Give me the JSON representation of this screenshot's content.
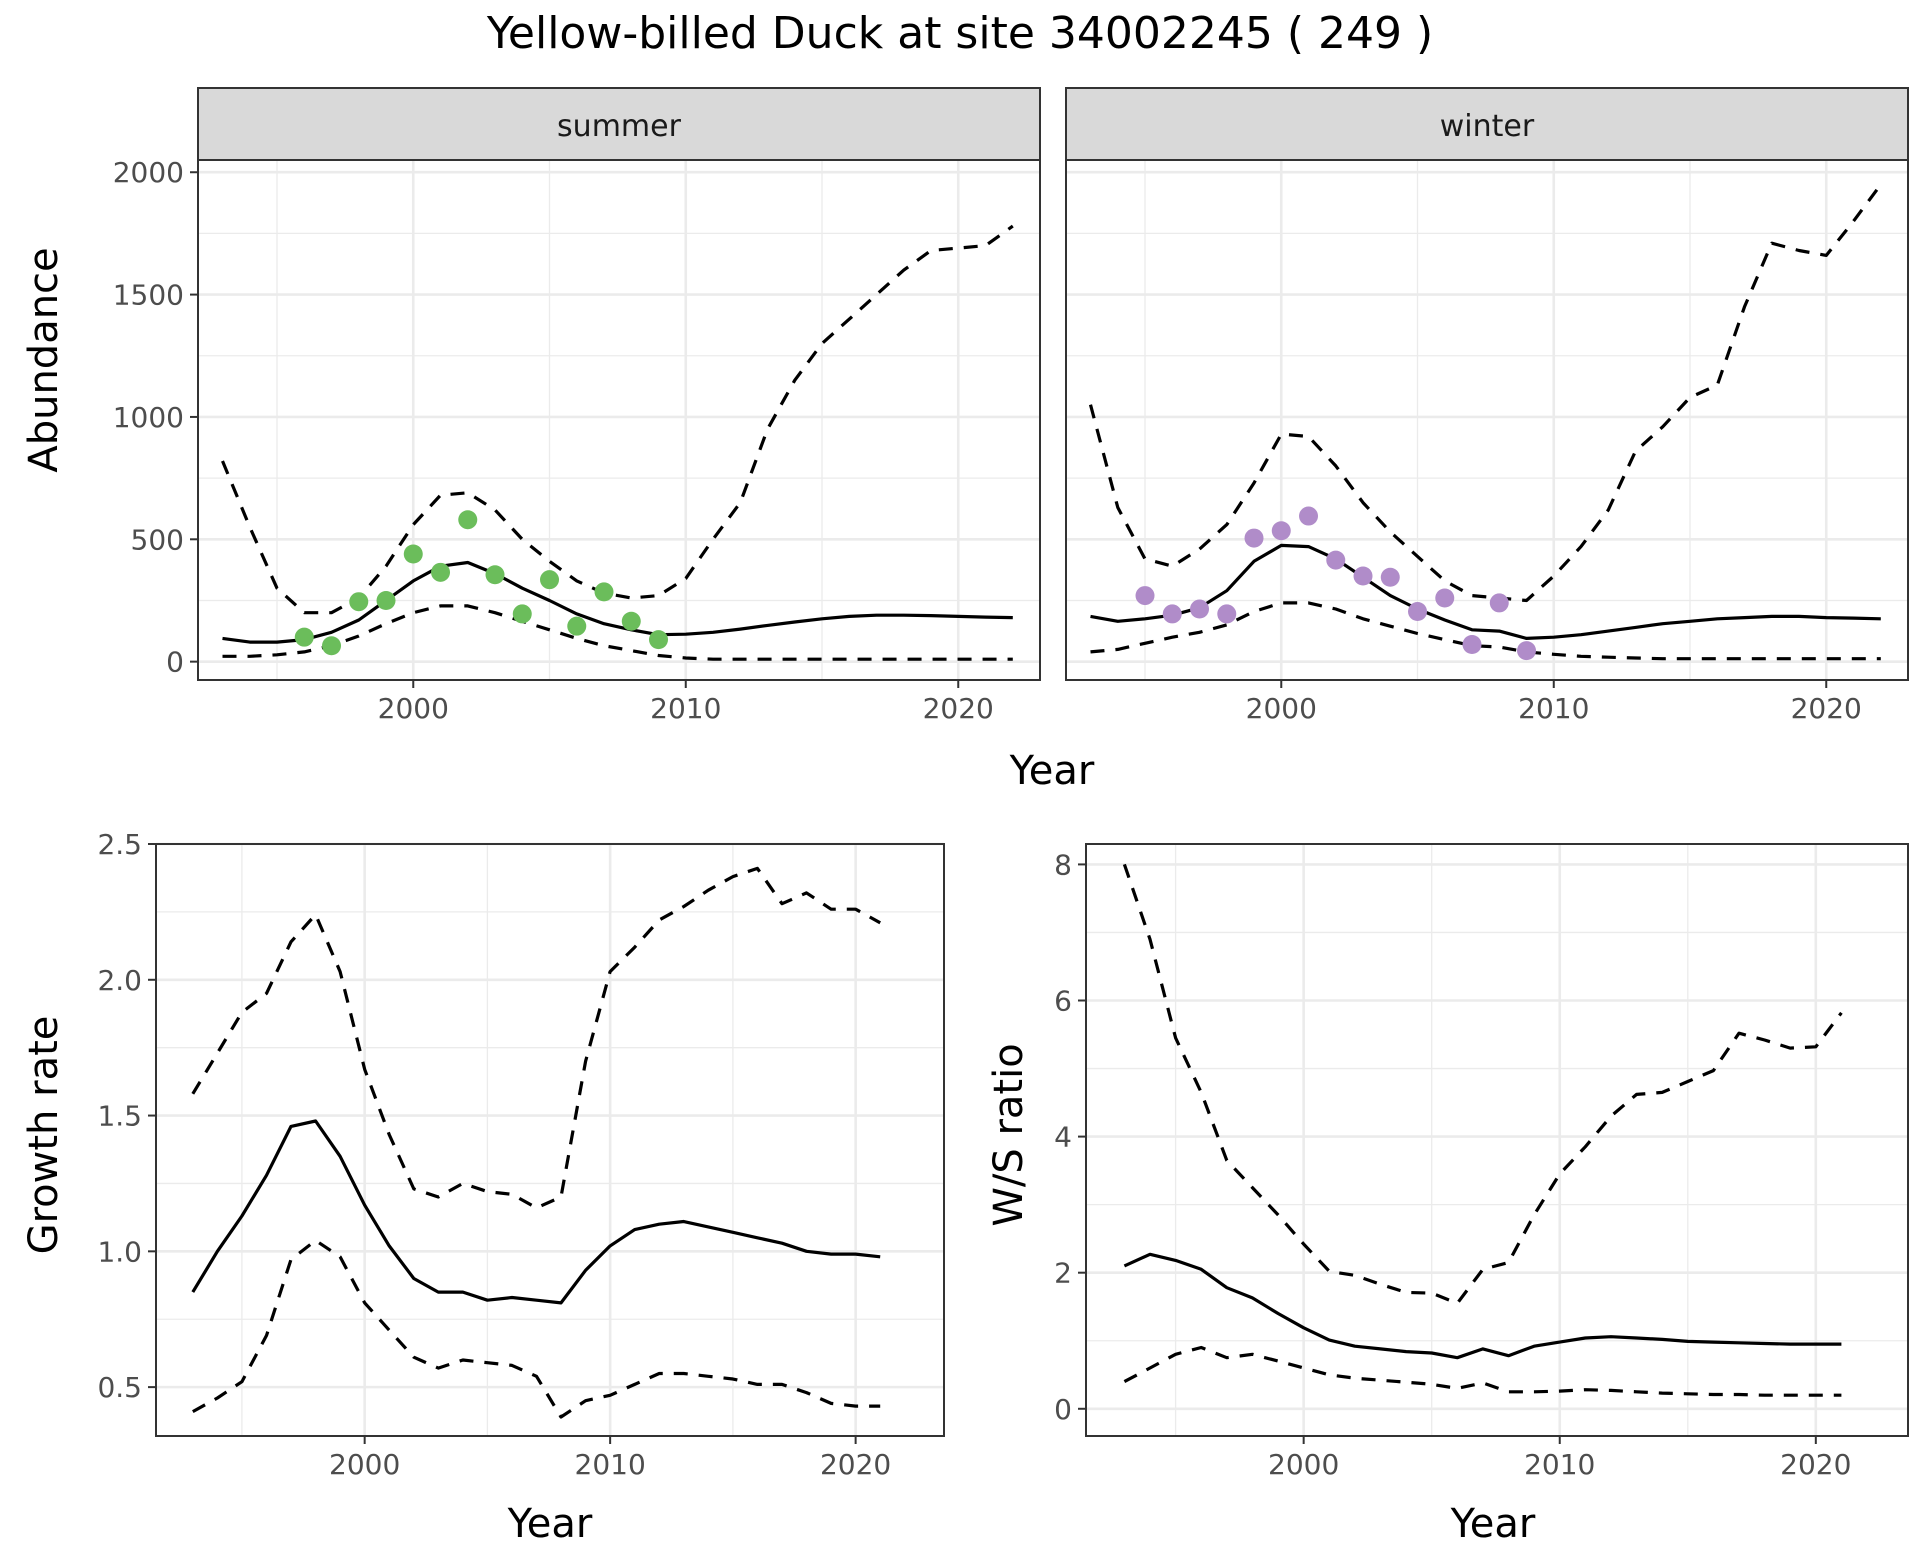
{
  "title": "Yellow-billed Duck at site 34002245 ( 249 )",
  "colors": {
    "summer_points": "#6bbd5b",
    "winter_points": "#b08cc9",
    "lines": "#000000"
  },
  "chart_data": [
    {
      "type": "line",
      "panel": "summer",
      "xlabel": "Year",
      "ylabel": "Abundance",
      "xlim": [
        1992.1,
        2023.0
      ],
      "ylim": [
        -75,
        2050
      ],
      "x_ticks": [
        2000,
        2010,
        2020
      ],
      "y_ticks": [
        0,
        500,
        1000,
        1500,
        2000
      ],
      "grid": true,
      "x": [
        1993,
        1994,
        1995,
        1996,
        1997,
        1998,
        1999,
        2000,
        2001,
        2002,
        2003,
        2004,
        2005,
        2006,
        2007,
        2008,
        2009,
        2010,
        2011,
        2012,
        2013,
        2014,
        2015,
        2016,
        2017,
        2018,
        2019,
        2020,
        2021,
        2022
      ],
      "series": [
        {
          "role": "mean",
          "style": "solid",
          "values": [
            95,
            80,
            80,
            90,
            120,
            170,
            250,
            330,
            390,
            405,
            360,
            300,
            250,
            195,
            155,
            130,
            110,
            112,
            120,
            133,
            148,
            162,
            175,
            185,
            190,
            190,
            188,
            185,
            182,
            180
          ]
        },
        {
          "role": "upper",
          "style": "dashed",
          "values": [
            820,
            550,
            300,
            200,
            200,
            260,
            390,
            560,
            680,
            690,
            620,
            500,
            410,
            330,
            280,
            260,
            270,
            340,
            500,
            650,
            950,
            1150,
            1300,
            1400,
            1500,
            1600,
            1680,
            1690,
            1700,
            1780
          ]
        },
        {
          "role": "lower",
          "style": "dashed",
          "values": [
            22,
            22,
            28,
            40,
            65,
            105,
            155,
            200,
            228,
            228,
            200,
            165,
            130,
            95,
            65,
            45,
            25,
            15,
            10,
            10,
            10,
            10,
            10,
            10,
            10,
            10,
            10,
            10,
            10,
            10
          ]
        }
      ],
      "points": {
        "color": "#6bbd5b",
        "x": [
          1996,
          1997,
          1998,
          1999,
          2000,
          2001,
          2002,
          2003,
          2004,
          2005,
          2006,
          2007,
          2008,
          2009
        ],
        "y": [
          100,
          65,
          245,
          250,
          440,
          365,
          580,
          355,
          195,
          335,
          145,
          285,
          165,
          90
        ]
      }
    },
    {
      "type": "line",
      "panel": "winter",
      "xlabel": "Year",
      "ylabel": "Abundance",
      "xlim": [
        1992.1,
        2023.0
      ],
      "ylim": [
        -75,
        2050
      ],
      "x_ticks": [
        2000,
        2010,
        2020
      ],
      "y_ticks": [
        0,
        500,
        1000,
        1500,
        2000
      ],
      "grid": true,
      "x": [
        1993,
        1994,
        1995,
        1996,
        1997,
        1998,
        1999,
        2000,
        2001,
        2002,
        2003,
        2004,
        2005,
        2006,
        2007,
        2008,
        2009,
        2010,
        2011,
        2012,
        2013,
        2014,
        2015,
        2016,
        2017,
        2018,
        2019,
        2020,
        2021,
        2022
      ],
      "series": [
        {
          "role": "mean",
          "style": "solid",
          "values": [
            185,
            165,
            175,
            190,
            220,
            290,
            410,
            475,
            470,
            420,
            345,
            270,
            215,
            170,
            130,
            125,
            95,
            100,
            110,
            125,
            140,
            155,
            165,
            175,
            180,
            185,
            185,
            180,
            178,
            175
          ]
        },
        {
          "role": "upper",
          "style": "dashed",
          "values": [
            1050,
            630,
            420,
            390,
            460,
            560,
            730,
            930,
            920,
            800,
            650,
            530,
            430,
            330,
            270,
            260,
            250,
            350,
            470,
            620,
            860,
            960,
            1080,
            1130,
            1450,
            1710,
            1680,
            1660,
            1800,
            1950
          ]
        },
        {
          "role": "lower",
          "style": "dashed",
          "values": [
            40,
            50,
            75,
            100,
            120,
            150,
            205,
            240,
            240,
            215,
            175,
            145,
            115,
            90,
            65,
            60,
            40,
            30,
            22,
            18,
            15,
            12,
            12,
            12,
            12,
            12,
            12,
            12,
            12,
            12
          ]
        }
      ],
      "points": {
        "color": "#b08cc9",
        "x": [
          1995,
          1996,
          1997,
          1998,
          1999,
          2000,
          2001,
          2002,
          2003,
          2004,
          2005,
          2006,
          2007,
          2008,
          2009
        ],
        "y": [
          270,
          195,
          215,
          195,
          505,
          535,
          595,
          415,
          350,
          345,
          205,
          260,
          70,
          240,
          45
        ]
      }
    },
    {
      "type": "line",
      "panel": "growth",
      "xlabel": "Year",
      "ylabel": "Growth rate",
      "xlim": [
        1991.5,
        2023.6
      ],
      "ylim": [
        0.32,
        2.5
      ],
      "x_ticks": [
        2000,
        2010,
        2020
      ],
      "y_ticks": [
        0.5,
        1.0,
        1.5,
        2.0,
        2.5
      ],
      "y_tick_labels": [
        "0.5",
        "1.0",
        "1.5",
        "2.0",
        "2.5"
      ],
      "grid": true,
      "x": [
        1993,
        1994,
        1995,
        1996,
        1997,
        1998,
        1999,
        2000,
        2001,
        2002,
        2003,
        2004,
        2005,
        2006,
        2007,
        2008,
        2009,
        2010,
        2011,
        2012,
        2013,
        2014,
        2015,
        2016,
        2017,
        2018,
        2019,
        2020,
        2021
      ],
      "series": [
        {
          "role": "mean",
          "style": "solid",
          "values": [
            0.85,
            1.0,
            1.13,
            1.28,
            1.46,
            1.48,
            1.35,
            1.17,
            1.02,
            0.9,
            0.85,
            0.85,
            0.82,
            0.83,
            0.82,
            0.81,
            0.93,
            1.02,
            1.08,
            1.1,
            1.11,
            1.09,
            1.07,
            1.05,
            1.03,
            1.0,
            0.99,
            0.99,
            0.98
          ]
        },
        {
          "role": "upper",
          "style": "dashed",
          "values": [
            1.58,
            1.73,
            1.88,
            1.95,
            2.14,
            2.24,
            2.03,
            1.67,
            1.43,
            1.23,
            1.2,
            1.25,
            1.22,
            1.21,
            1.16,
            1.2,
            1.7,
            2.03,
            2.12,
            2.22,
            2.27,
            2.33,
            2.38,
            2.41,
            2.28,
            2.32,
            2.26,
            2.26,
            2.21
          ]
        },
        {
          "role": "lower",
          "style": "dashed",
          "values": [
            0.41,
            0.46,
            0.52,
            0.69,
            0.97,
            1.04,
            0.98,
            0.81,
            0.71,
            0.61,
            0.57,
            0.6,
            0.59,
            0.58,
            0.54,
            0.39,
            0.45,
            0.47,
            0.51,
            0.55,
            0.55,
            0.54,
            0.53,
            0.51,
            0.51,
            0.48,
            0.44,
            0.43,
            0.43
          ]
        }
      ]
    },
    {
      "type": "line",
      "panel": "ratio",
      "xlabel": "Year",
      "ylabel": "W/S ratio",
      "xlim": [
        1991.5,
        2023.6
      ],
      "ylim": [
        -0.4,
        8.3
      ],
      "x_ticks": [
        2000,
        2010,
        2020
      ],
      "y_ticks": [
        0,
        2,
        4,
        6,
        8
      ],
      "grid": true,
      "x": [
        1993,
        1994,
        1995,
        1996,
        1997,
        1998,
        1999,
        2000,
        2001,
        2002,
        2003,
        2004,
        2005,
        2006,
        2007,
        2008,
        2009,
        2010,
        2011,
        2012,
        2013,
        2014,
        2015,
        2016,
        2017,
        2018,
        2019,
        2020,
        2021
      ],
      "series": [
        {
          "role": "mean",
          "style": "solid",
          "values": [
            2.1,
            2.27,
            2.18,
            2.05,
            1.78,
            1.63,
            1.4,
            1.19,
            1.01,
            0.92,
            0.88,
            0.84,
            0.82,
            0.75,
            0.88,
            0.78,
            0.92,
            0.98,
            1.04,
            1.06,
            1.04,
            1.02,
            0.99,
            0.98,
            0.97,
            0.96,
            0.95,
            0.95,
            0.95
          ]
        },
        {
          "role": "upper",
          "style": "dashed",
          "values": [
            8.0,
            6.9,
            5.45,
            4.65,
            3.65,
            3.25,
            2.85,
            2.42,
            2.02,
            1.96,
            1.83,
            1.71,
            1.7,
            1.55,
            2.05,
            2.15,
            2.85,
            3.45,
            3.85,
            4.3,
            4.62,
            4.65,
            4.81,
            4.97,
            5.52,
            5.42,
            5.3,
            5.32,
            5.82
          ]
        },
        {
          "role": "lower",
          "style": "dashed",
          "values": [
            0.4,
            0.6,
            0.8,
            0.9,
            0.75,
            0.8,
            0.7,
            0.6,
            0.5,
            0.45,
            0.42,
            0.39,
            0.36,
            0.3,
            0.38,
            0.25,
            0.25,
            0.26,
            0.28,
            0.27,
            0.25,
            0.23,
            0.22,
            0.21,
            0.21,
            0.2,
            0.2,
            0.2,
            0.2
          ]
        }
      ]
    }
  ]
}
